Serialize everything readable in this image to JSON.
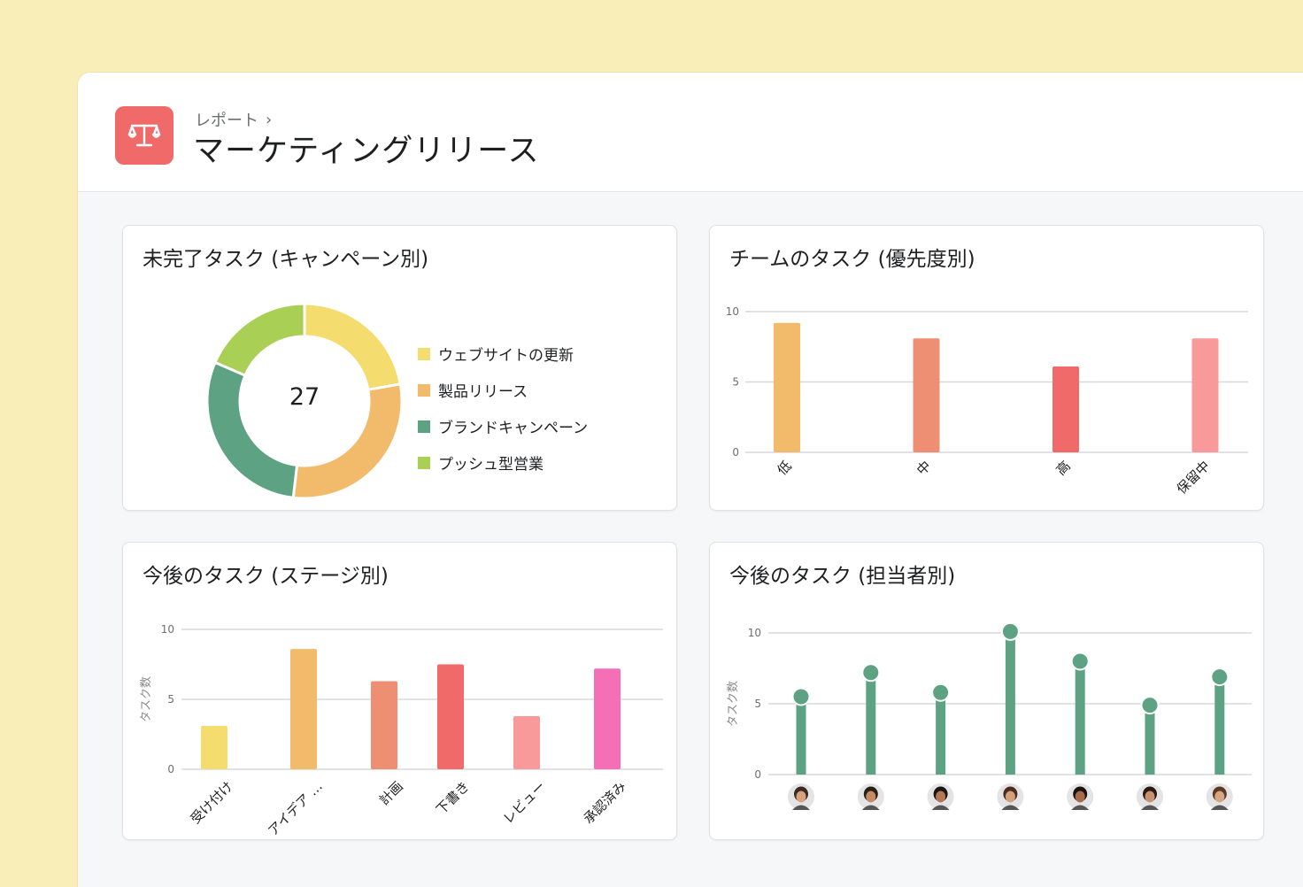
{
  "breadcrumb": {
    "label": "レポート",
    "chevron": "›"
  },
  "page": {
    "title": "マーケティングリリース",
    "icon": "scale-icon",
    "icon_color": "#F06A6A"
  },
  "cards": {
    "campaign": {
      "title": "未完了タスク (キャンペーン別)"
    },
    "priority": {
      "title": "チームのタスク (優先度別)"
    },
    "stage": {
      "title": "今後のタスク (ステージ別)"
    },
    "assignee": {
      "title": "今後のタスク (担当者別)"
    }
  },
  "chart_data": [
    {
      "type": "pie",
      "center_label": "27",
      "categories": [
        "ウェブサイトの更新",
        "製品リリース",
        "ブランドキャンペーン",
        "プッシュ型営業"
      ],
      "values": [
        6,
        8,
        8,
        5
      ],
      "colors": [
        "#F5DC6E",
        "#F2BA6B",
        "#5DA283",
        "#AACF55"
      ],
      "legend": "right"
    },
    {
      "type": "bar",
      "categories": [
        "低",
        "中",
        "高",
        "保留中"
      ],
      "values": [
        9.2,
        8.1,
        6.1,
        8.1
      ],
      "colors": [
        "#F2BA6B",
        "#EE8F74",
        "#F06A6A",
        "#F8999A"
      ],
      "yticks": [
        "0",
        "5",
        "10"
      ],
      "ylim": [
        0,
        10
      ],
      "grid": true
    },
    {
      "type": "bar",
      "categories": [
        "受け付け",
        "アイデア …",
        "計画",
        "下書き",
        "レビュー",
        "承認済み"
      ],
      "values": [
        3.1,
        8.6,
        6.3,
        7.5,
        3.8,
        7.2
      ],
      "colors": [
        "#F5DC6E",
        "#F2BA6B",
        "#EE8F74",
        "#F06A6A",
        "#F8999A",
        "#F46FB5"
      ],
      "yticks": [
        "0",
        "5",
        "10"
      ],
      "ylabel": "タスク数",
      "ylim": [
        0,
        10
      ],
      "grid": true
    },
    {
      "type": "lollipop",
      "categories": [
        "avatar-1",
        "avatar-2",
        "avatar-3",
        "avatar-4",
        "avatar-5",
        "avatar-6",
        "avatar-7"
      ],
      "values": [
        5.5,
        7.2,
        5.8,
        10.1,
        8.0,
        4.9,
        6.9
      ],
      "color": "#5DA283",
      "yticks": [
        "0",
        "5",
        "10"
      ],
      "ylabel": "タスク数",
      "ylim": [
        0,
        10
      ],
      "grid": true
    }
  ]
}
